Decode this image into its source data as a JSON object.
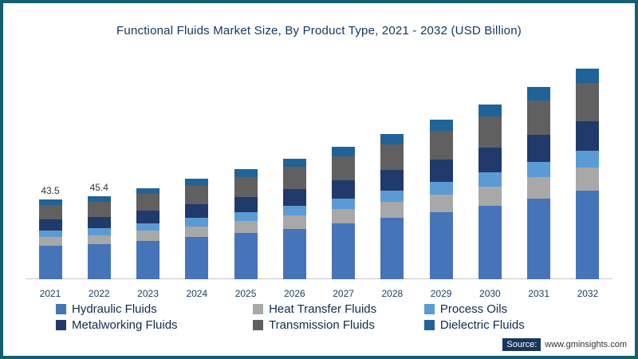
{
  "chart_data": {
    "type": "bar",
    "stacked": true,
    "title": "Functional Fluids Market Size, By Product Type, 2021 - 2032 (USD Billion)",
    "unit": "USD Billion",
    "grid": false,
    "legend_position": "bottom",
    "categories": [
      "2021",
      "2022",
      "2023",
      "2024",
      "2025",
      "2026",
      "2027",
      "2028",
      "2029",
      "2030",
      "2031",
      "2032"
    ],
    "series": [
      {
        "name": "Hydraulic Fluids",
        "color": "#4674b9",
        "values": [
          18.3,
          19.1,
          20.9,
          22.9,
          25.2,
          27.6,
          30.3,
          33.3,
          36.5,
          40.1,
          44.0,
          48.3
        ]
      },
      {
        "name": "Heat Transfer Fluids",
        "color": "#a8a8a8",
        "values": [
          4.8,
          5.0,
          5.5,
          6.0,
          6.6,
          7.2,
          7.9,
          8.7,
          9.6,
          10.5,
          11.5,
          12.6
        ]
      },
      {
        "name": "Process Oils",
        "color": "#5b9bd5",
        "values": [
          3.5,
          3.6,
          4.0,
          4.4,
          4.8,
          5.3,
          5.8,
          6.3,
          7.0,
          7.6,
          8.4,
          9.2
        ]
      },
      {
        "name": "Metalworking Fluids",
        "color": "#203a6b",
        "values": [
          6.1,
          6.4,
          7.0,
          7.6,
          8.4,
          9.2,
          10.1,
          11.1,
          12.2,
          13.4,
          14.7,
          16.1
        ]
      },
      {
        "name": "Transmission Fluids",
        "color": "#606060",
        "values": [
          7.8,
          8.2,
          9.0,
          9.8,
          10.8,
          11.8,
          13.0,
          14.3,
          15.6,
          17.2,
          18.8,
          20.7
        ]
      },
      {
        "name": "Dielectric Fluids",
        "color": "#1f6398",
        "values": [
          3.0,
          3.1,
          3.4,
          3.9,
          4.2,
          4.7,
          5.1,
          5.5,
          6.0,
          6.6,
          7.3,
          8.0
        ]
      }
    ],
    "totals_labeled": {
      "2021": "43.5",
      "2022": "45.4"
    },
    "totals_estimated": [
      43.5,
      45.4,
      49.8,
      54.6,
      60.0,
      65.8,
      72.2,
      79.2,
      86.9,
      95.4,
      104.7,
      114.9
    ]
  },
  "source": {
    "label": "Source:",
    "url": "www.gminsights.com"
  },
  "colors": {
    "frame_border": "#135F6D",
    "title_text": "#12365e",
    "axis_line": "#c9c9c9"
  }
}
